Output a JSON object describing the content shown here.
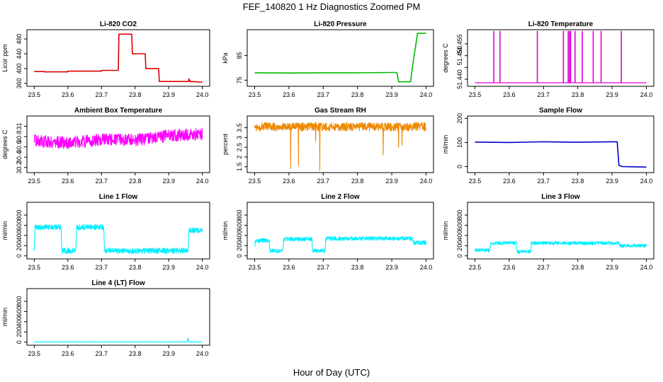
{
  "figure": {
    "title": "FEF_140820  1 Hz Diagnostics Zoomed PM",
    "xlabel": "Hour of Day (UTC)"
  },
  "chart_data": [
    {
      "type": "line",
      "title": "Li-820 CO2",
      "ylabel": "Licor ppm",
      "color": "#dd0000",
      "xlim": [
        23.5,
        24.0
      ],
      "ylim": [
        352,
        505
      ],
      "yticks": [
        360,
        400,
        440,
        480
      ],
      "xticks": [
        23.5,
        23.6,
        23.7,
        23.8,
        23.9,
        24.0
      ],
      "series": [
        {
          "x": [
            23.5,
            23.53,
            23.53,
            23.6,
            23.6,
            23.7,
            23.7,
            23.75,
            23.752,
            23.79,
            23.792,
            23.83,
            23.832,
            23.87,
            23.872,
            23.96,
            23.96,
            23.965,
            23.967,
            24.0
          ],
          "y": [
            392,
            392,
            391,
            391,
            393,
            393,
            395,
            395,
            493,
            493,
            440,
            440,
            400,
            400,
            365,
            365,
            372,
            364,
            365,
            363
          ]
        }
      ]
    },
    {
      "type": "line",
      "title": "Li-820 Pressure",
      "ylabel": "kPa",
      "color": "#00bb00",
      "xlim": [
        23.5,
        24.0
      ],
      "ylim": [
        72.5,
        95.5
      ],
      "yticks": [
        75,
        85
      ],
      "xticks": [
        23.5,
        23.6,
        23.7,
        23.8,
        23.9,
        24.0
      ],
      "series": [
        {
          "x": [
            23.5,
            23.6,
            23.7,
            23.8,
            23.9,
            23.915,
            23.92,
            23.955,
            23.96,
            23.975,
            24.0
          ],
          "y": [
            78.0,
            77.9,
            78.0,
            78.0,
            78.1,
            78.1,
            74.3,
            74.3,
            80,
            94.0,
            94.1
          ]
        }
      ]
    },
    {
      "type": "line",
      "title": "Li-820 Temperature",
      "ylabel": "degrees C",
      "color": "#dd00dd",
      "xlim": [
        23.5,
        24.0
      ],
      "ylim": [
        51.437,
        51.461
      ],
      "yticks": [
        51.44,
        51.445,
        51.45,
        51.455
      ],
      "ytick_labels": [
        "51.440",
        "",
        "51.450",
        "51.455"
      ],
      "xticks": [
        23.5,
        23.6,
        23.7,
        23.8,
        23.9,
        24.0
      ],
      "baseline": 51.4385,
      "spike_top": 51.4605,
      "spikes": [
        23.555,
        23.573,
        23.682,
        23.758,
        23.772,
        23.776,
        23.779,
        23.792,
        23.813,
        23.845,
        23.868,
        23.927
      ]
    },
    {
      "type": "line",
      "title": "Ambient Box Temperature",
      "ylabel": "degrees C",
      "color": "#ff00ff",
      "xlim": [
        23.5,
        24.0
      ],
      "ylim": [
        30.1,
        31.2
      ],
      "yticks": [
        30.2,
        30.4,
        30.6,
        30.8,
        31.0
      ],
      "xticks": [
        23.5,
        23.6,
        23.7,
        23.8,
        23.9,
        24.0
      ],
      "series": [
        {
          "x": [
            23.5,
            23.6,
            23.7,
            23.8,
            23.9,
            24.0
          ],
          "y": [
            30.72,
            30.68,
            30.74,
            30.73,
            30.82,
            30.85
          ]
        }
      ],
      "noise": 0.12
    },
    {
      "type": "line",
      "title": "Gas Stream RH",
      "ylabel": "percent",
      "color": "#ee8800",
      "xlim": [
        23.5,
        24.0
      ],
      "ylim": [
        1.2,
        4.1
      ],
      "yticks": [
        1.5,
        2.0,
        2.5,
        3.0,
        3.5
      ],
      "xticks": [
        23.5,
        23.6,
        23.7,
        23.8,
        23.9,
        24.0
      ],
      "series": [
        {
          "x": [
            23.5,
            24.0
          ],
          "y": [
            3.55,
            3.55
          ]
        }
      ],
      "noise": 0.22,
      "dips": [
        {
          "x": 23.605,
          "y": 1.4
        },
        {
          "x": 23.628,
          "y": 1.55
        },
        {
          "x": 23.678,
          "y": 2.8
        },
        {
          "x": 23.69,
          "y": 1.3
        },
        {
          "x": 23.875,
          "y": 2.1
        },
        {
          "x": 23.92,
          "y": 2.5
        },
        {
          "x": 23.93,
          "y": 2.6
        }
      ]
    },
    {
      "type": "line",
      "title": "Sample Flow",
      "ylabel": "ml/min",
      "color": "#0000cc",
      "xlim": [
        23.5,
        24.0
      ],
      "ylim": [
        -25,
        210
      ],
      "yticks": [
        0,
        100,
        200
      ],
      "xticks": [
        23.5,
        23.6,
        23.7,
        23.8,
        23.9,
        24.0
      ],
      "series": [
        {
          "x": [
            23.5,
            23.6,
            23.7,
            23.8,
            23.9,
            23.915,
            23.92,
            23.93,
            24.0
          ],
          "y": [
            102,
            100,
            103,
            101,
            103,
            103,
            5,
            0,
            -2
          ]
        }
      ]
    },
    {
      "type": "line",
      "title": "Line 1 Flow",
      "ylabel": "ml/min",
      "color": "#00eeff",
      "xlim": [
        23.5,
        24.0
      ],
      "ylim": [
        -60,
        1050
      ],
      "yticks": [
        0,
        200,
        400,
        600,
        800
      ],
      "xticks": [
        23.5,
        23.6,
        23.7,
        23.8,
        23.9,
        24.0
      ],
      "series": [
        {
          "x": [
            23.5,
            23.502,
            23.58,
            23.582,
            23.624,
            23.626,
            23.707,
            23.709,
            23.957,
            23.96,
            24.0
          ],
          "y": [
            100,
            560,
            560,
            100,
            100,
            560,
            560,
            100,
            100,
            500,
            500
          ]
        }
      ],
      "noise": 55
    },
    {
      "type": "line",
      "title": "Line 2 Flow",
      "ylabel": "ml/min",
      "color": "#00eeff",
      "xlim": [
        23.5,
        24.0
      ],
      "ylim": [
        -60,
        1050
      ],
      "yticks": [
        0,
        200,
        400,
        600,
        800
      ],
      "xticks": [
        23.5,
        23.6,
        23.7,
        23.8,
        23.9,
        24.0
      ],
      "series": [
        {
          "x": [
            23.5,
            23.502,
            23.542,
            23.544,
            23.582,
            23.585,
            23.667,
            23.669,
            23.705,
            23.708,
            23.96,
            23.962,
            24.0
          ],
          "y": [
            180,
            300,
            300,
            100,
            100,
            330,
            330,
            100,
            100,
            340,
            340,
            260,
            260
          ]
        }
      ],
      "noise": 40
    },
    {
      "type": "line",
      "title": "Line 3 Flow",
      "ylabel": "ml/min",
      "color": "#00eeff",
      "xlim": [
        23.5,
        24.0
      ],
      "ylim": [
        -60,
        1050
      ],
      "yticks": [
        0,
        200,
        400,
        600,
        800
      ],
      "xticks": [
        23.5,
        23.6,
        23.7,
        23.8,
        23.9,
        24.0
      ],
      "series": [
        {
          "x": [
            23.5,
            23.502,
            23.543,
            23.546,
            23.62,
            23.623,
            23.662,
            23.665,
            23.92,
            23.925,
            24.0
          ],
          "y": [
            110,
            110,
            110,
            250,
            250,
            80,
            80,
            250,
            250,
            200,
            200
          ]
        }
      ],
      "noise": 35
    },
    {
      "type": "line",
      "title": "Line 4 (LT) Flow",
      "ylabel": "ml/min",
      "color": "#00eeff",
      "xlim": [
        23.5,
        24.0
      ],
      "ylim": [
        -60,
        1050
      ],
      "yticks": [
        0,
        200,
        400,
        600,
        800
      ],
      "xticks": [
        23.5,
        23.6,
        23.7,
        23.8,
        23.9,
        24.0
      ],
      "series": [
        {
          "x": [
            23.5,
            23.955,
            23.957,
            23.959,
            24.0
          ],
          "y": [
            5,
            5,
            90,
            5,
            5
          ]
        }
      ],
      "noise": 3
    }
  ]
}
